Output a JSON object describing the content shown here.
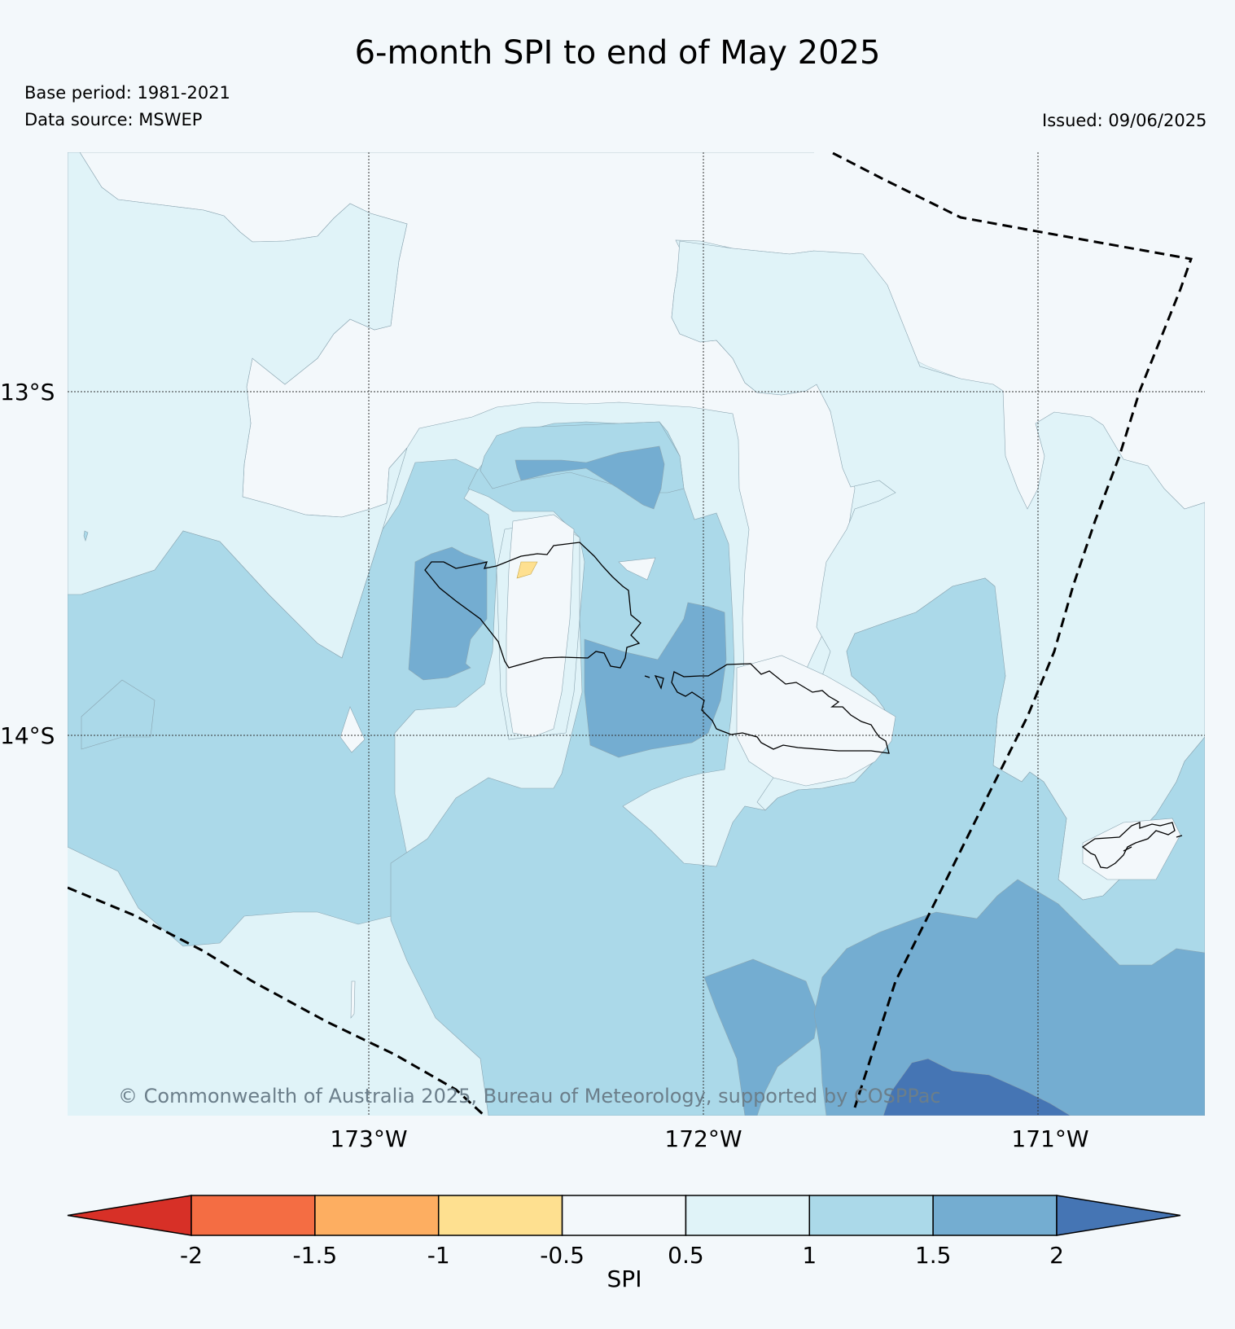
{
  "header": {
    "title": "6-month SPI to end of May 2025",
    "base_period": "Base period: 1981-2021",
    "data_source": "Data source: MSWEP",
    "issued": "Issued: 09/06/2025"
  },
  "map": {
    "lat_labels": [
      "13°S",
      "14°S"
    ],
    "lon_labels": [
      "173°W",
      "172°W",
      "171°W"
    ],
    "copyright": "© Commonwealth of Australia 2025, Bureau of Meteorology, supported by COSPPac",
    "gridlines": true,
    "features": [
      "contour-filled SPI field",
      "coastline",
      "maritime boundary (dashed)"
    ]
  },
  "legend": {
    "label": "SPI",
    "ticks": [
      "-2",
      "-1.5",
      "-1",
      "-0.5",
      "0.5",
      "1",
      "1.5",
      "2"
    ],
    "colors": [
      "#d73027",
      "#f46d43",
      "#fdae61",
      "#fee090",
      "#f3f8fb",
      "#e0f3f8",
      "#abd9e9",
      "#74add1",
      "#4575b4"
    ]
  }
}
